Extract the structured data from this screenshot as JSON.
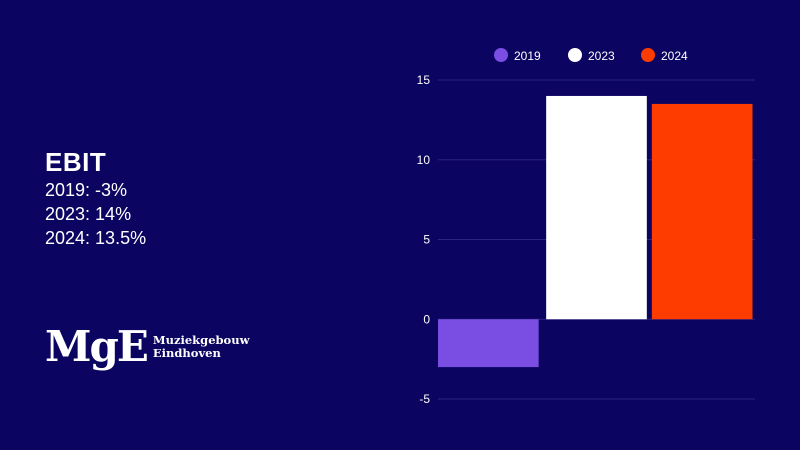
{
  "summary": {
    "title": "EBIT",
    "lines": [
      "2019: -3%",
      "2023: 14%",
      "2024: 13.5%"
    ]
  },
  "logo": {
    "mark": "MgE",
    "line1": "Muziekgebouw",
    "line2": "Eindhoven"
  },
  "chart_data": {
    "type": "bar",
    "title": "",
    "xlabel": "",
    "ylabel": "",
    "ylim": [
      -5,
      15
    ],
    "yticks": [
      15,
      10,
      5,
      0,
      -5
    ],
    "grid": true,
    "legend": "top",
    "series": [
      {
        "name": "2019",
        "values": [
          -3
        ],
        "color": "#7b4ee3"
      },
      {
        "name": "2023",
        "values": [
          14
        ],
        "color": "#ffffff"
      },
      {
        "name": "2024",
        "values": [
          13.5
        ],
        "color": "#ff3c00"
      }
    ]
  }
}
